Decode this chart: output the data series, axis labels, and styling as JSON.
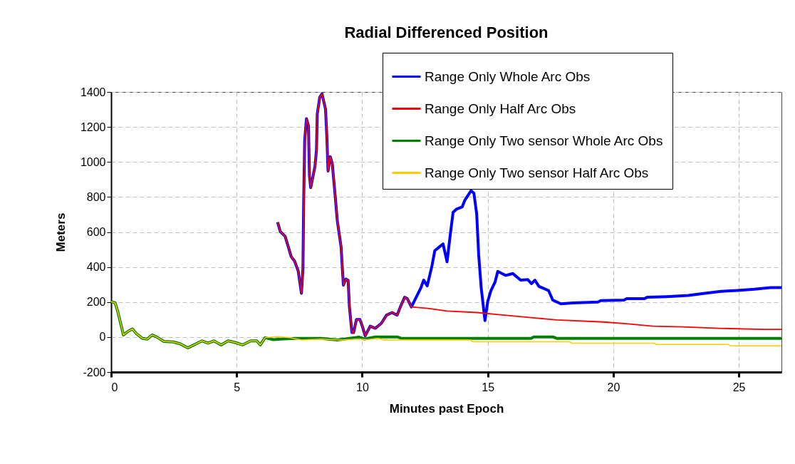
{
  "chart_data": {
    "type": "line",
    "title": "Radial Differenced Position",
    "xlabel": "Minutes past Epoch",
    "ylabel": "Meters",
    "xlim": [
      0,
      26.7
    ],
    "ylim": [
      -200,
      1400
    ],
    "xticks": [
      0,
      5,
      10,
      15,
      20,
      25
    ],
    "yticks": [
      -200,
      0,
      200,
      400,
      600,
      800,
      1000,
      1200,
      1400
    ],
    "grid": true,
    "legend": "top right",
    "line_style": "solid",
    "series": [
      {
        "name": "Range Only Whole Arc Obs",
        "color": "#0000ff",
        "x": [
          6.63,
          6.74,
          6.93,
          7.03,
          7.17,
          7.31,
          7.45,
          7.58,
          7.64,
          7.67,
          7.71,
          7.78,
          7.86,
          7.9,
          7.95,
          8.12,
          8.18,
          8.21,
          8.31,
          8.4,
          8.54,
          8.59,
          8.64,
          8.73,
          8.81,
          8.92,
          9.01,
          9.16,
          9.25,
          9.35,
          9.44,
          9.49,
          9.59,
          9.66,
          9.77,
          9.91,
          10.01,
          10.12,
          10.32,
          10.52,
          10.76,
          10.97,
          11.19,
          11.39,
          11.52,
          11.69,
          11.8,
          11.96,
          12.34,
          12.45,
          12.59,
          12.78,
          12.89,
          13.05,
          13.22,
          13.38,
          13.49,
          13.62,
          13.76,
          13.98,
          14.09,
          14.34,
          14.45,
          14.56,
          14.64,
          14.74,
          14.89,
          15.0,
          15.13,
          15.29,
          15.4,
          15.72,
          16.0,
          16.31,
          16.6,
          16.74,
          16.88,
          17.04,
          17.42,
          17.59,
          17.91,
          18.4,
          19.39,
          19.5,
          20.43,
          20.53,
          21.24,
          21.35,
          22.12,
          22.99,
          23.65,
          24.3,
          24.96,
          25.62,
          26.27,
          26.7
        ],
        "values": [
          656,
          602,
          575,
          528,
          460,
          433,
          378,
          250,
          392,
          773,
          1125,
          1247,
          1206,
          921,
          853,
          975,
          1070,
          1274,
          1370,
          1389,
          1301,
          1152,
          948,
          1030,
          989,
          813,
          663,
          514,
          297,
          331,
          324,
          175,
          26,
          26,
          100,
          100,
          60,
          7,
          62,
          50,
          78,
          125,
          140,
          125,
          172,
          227,
          219,
          172,
          282,
          325,
          292,
          407,
          493,
          512,
          532,
          430,
          563,
          712,
          731,
          743,
          782,
          837,
          821,
          704,
          469,
          282,
          94,
          203,
          266,
          313,
          375,
          352,
          363,
          325,
          328,
          305,
          325,
          289,
          266,
          211,
          190,
          195,
          200,
          208,
          211,
          219,
          219,
          227,
          231,
          238,
          250,
          261,
          266,
          273,
          282,
          282
        ]
      },
      {
        "name": "Range Only Half Arc Obs",
        "color": "#ff0000",
        "x": [
          6.63,
          6.74,
          6.93,
          7.03,
          7.17,
          7.31,
          7.45,
          7.58,
          7.64,
          7.67,
          7.71,
          7.78,
          7.86,
          7.9,
          7.95,
          8.12,
          8.18,
          8.21,
          8.31,
          8.4,
          8.54,
          8.59,
          8.64,
          8.73,
          8.81,
          8.92,
          9.01,
          9.16,
          9.25,
          9.35,
          9.44,
          9.49,
          9.59,
          9.66,
          9.77,
          9.91,
          10.01,
          10.12,
          10.32,
          10.52,
          10.76,
          10.97,
          11.19,
          11.39,
          11.52,
          11.69,
          11.8,
          11.96,
          12.61,
          13.38,
          14.58,
          15.35,
          16.88,
          17.75,
          19.61,
          20.59,
          21.57,
          22.78,
          24.2,
          25.94,
          26.7
        ],
        "values": [
          656,
          602,
          575,
          528,
          460,
          433,
          378,
          250,
          392,
          773,
          1125,
          1247,
          1206,
          921,
          853,
          975,
          1070,
          1274,
          1370,
          1389,
          1301,
          1152,
          948,
          1030,
          989,
          813,
          663,
          514,
          297,
          331,
          324,
          175,
          26,
          26,
          100,
          100,
          60,
          7,
          62,
          50,
          78,
          125,
          140,
          125,
          172,
          227,
          219,
          172,
          164,
          149,
          140,
          129,
          109,
          98,
          86,
          75,
          62,
          58,
          50,
          44,
          44
        ]
      },
      {
        "name": "Range Only Two sensor Whole Arc Obs",
        "color": "#008000",
        "x": [
          0,
          0.16,
          0.26,
          0.4,
          0.49,
          0.68,
          0.85,
          1.01,
          1.25,
          1.44,
          1.63,
          1.82,
          2.1,
          2.48,
          2.76,
          3.05,
          3.24,
          3.62,
          3.86,
          4.09,
          4.38,
          4.66,
          4.94,
          5.23,
          5.56,
          5.8,
          5.94,
          6.13,
          6.46,
          6.74,
          7.31,
          8.35,
          9.01,
          9.87,
          10.1,
          10.53,
          11.4,
          11.57,
          16.73,
          16.84,
          17.6,
          17.76,
          26.7
        ],
        "values": [
          202,
          195,
          148,
          66,
          12,
          33,
          46,
          19,
          -8,
          -12,
          12,
          0,
          -25,
          -28,
          -39,
          -62,
          -49,
          -22,
          -35,
          -22,
          -45,
          -22,
          -31,
          -45,
          -22,
          -22,
          -45,
          -4,
          -15,
          -12,
          -8,
          -8,
          -17,
          0,
          -11,
          1,
          1,
          -8,
          -8,
          1,
          1,
          -8,
          -8
        ]
      },
      {
        "name": "Range Only Two sensor Half Arc Obs",
        "color": "#ffcc00",
        "x": [
          0,
          0.16,
          0.26,
          0.4,
          0.49,
          0.68,
          0.85,
          1.01,
          1.25,
          1.44,
          1.63,
          1.82,
          2.1,
          2.48,
          2.76,
          3.05,
          3.24,
          3.62,
          3.86,
          4.09,
          4.38,
          4.66,
          4.94,
          5.23,
          5.56,
          5.8,
          5.94,
          6.13,
          6.65,
          7.12,
          7.59,
          8.35,
          9.11,
          9.87,
          10.21,
          10.64,
          10.86,
          14.34,
          14.39,
          18.25,
          18.36,
          21.62,
          21.73,
          24.56,
          24.67,
          26.7
        ],
        "values": [
          202,
          195,
          148,
          66,
          12,
          33,
          46,
          19,
          -8,
          -12,
          12,
          0,
          -25,
          -28,
          -39,
          -62,
          -49,
          -22,
          -35,
          -22,
          -45,
          -22,
          -31,
          -45,
          -22,
          -22,
          -45,
          -4,
          3,
          -4,
          -17,
          -12,
          -17,
          -12,
          -15,
          -8,
          -17,
          -17,
          -27,
          -27,
          -35,
          -35,
          -42,
          -42,
          -50,
          -50
        ]
      }
    ]
  }
}
